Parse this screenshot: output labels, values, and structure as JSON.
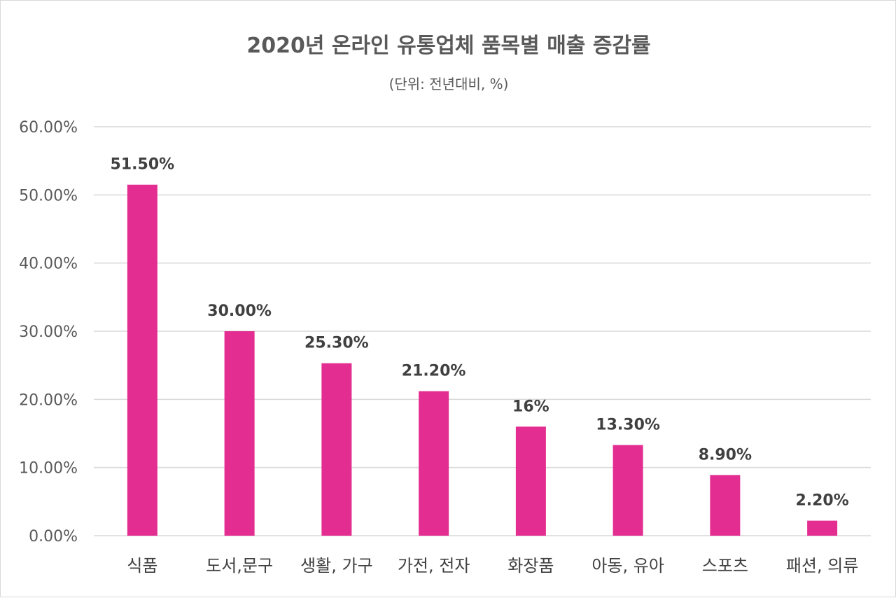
{
  "chart_data": {
    "type": "bar",
    "title": "2020년 온라인 유통업체 품목별 매출 증감률",
    "subtitle": "(단위: 전년대비, %)",
    "categories": [
      "식품",
      "도서,문구",
      "생활, 가구",
      "가전, 전자",
      "화장품",
      "아동, 유아",
      "스포츠",
      "패션, 의류"
    ],
    "values": [
      51.5,
      30.0,
      25.3,
      21.2,
      16,
      13.3,
      8.9,
      2.2
    ],
    "data_labels": [
      "51.50%",
      "30.00%",
      "25.30%",
      "21.20%",
      "16%",
      "13.30%",
      "8.90%",
      "2.20%"
    ],
    "ylim": [
      0,
      60
    ],
    "ytick_step": 10,
    "ytick_labels": [
      "0.00%",
      "10.00%",
      "20.00%",
      "30.00%",
      "40.00%",
      "50.00%",
      "60.00%"
    ],
    "grid": true,
    "bar_color": "#E32D91"
  }
}
